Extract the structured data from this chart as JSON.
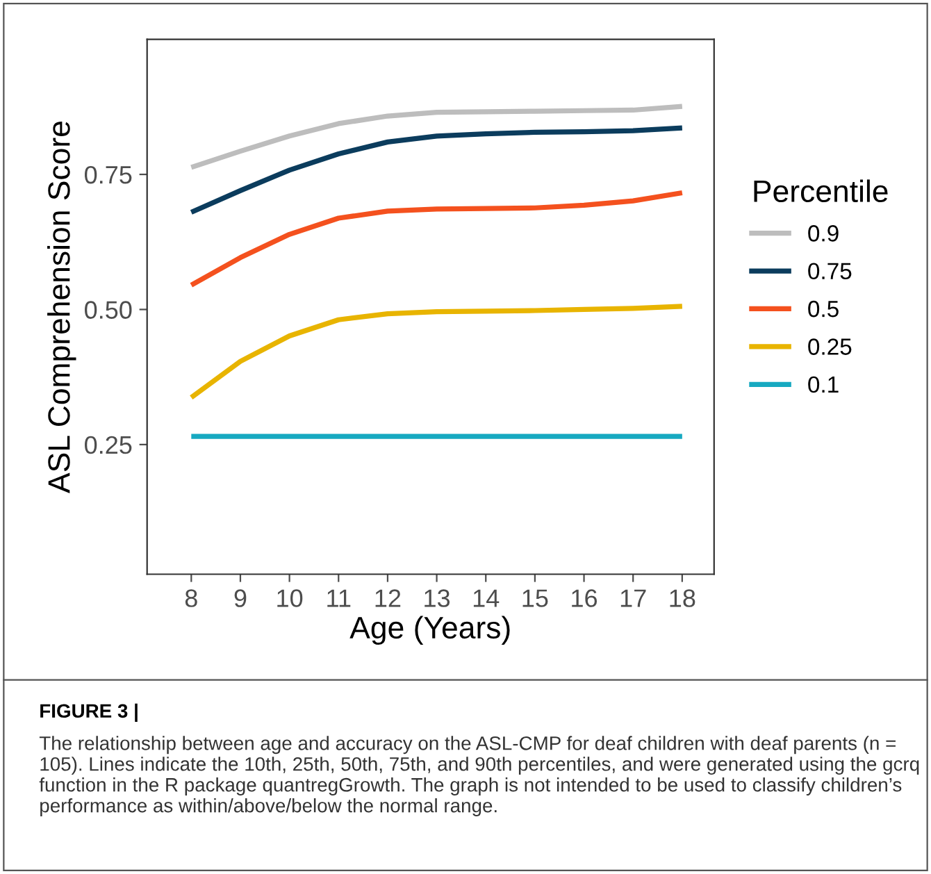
{
  "chart_data": {
    "type": "line",
    "xlabel": "Age (Years)",
    "ylabel": "ASL Comprehension Score",
    "legend_title": "Percentile",
    "x": [
      8,
      9,
      10,
      11,
      12,
      13,
      14,
      15,
      16,
      17,
      18
    ],
    "series": [
      {
        "name": "0.9",
        "color": "#bdbdbd",
        "values": [
          0.763,
          0.793,
          0.821,
          0.844,
          0.858,
          0.865,
          0.866,
          0.867,
          0.868,
          0.869,
          0.876
        ]
      },
      {
        "name": "0.75",
        "color": "#0b3c5d",
        "values": [
          0.68,
          0.72,
          0.758,
          0.788,
          0.81,
          0.821,
          0.825,
          0.828,
          0.829,
          0.831,
          0.836
        ]
      },
      {
        "name": "0.5",
        "color": "#f4511e",
        "values": [
          0.545,
          0.596,
          0.639,
          0.669,
          0.682,
          0.686,
          0.687,
          0.688,
          0.693,
          0.701,
          0.716
        ]
      },
      {
        "name": "0.25",
        "color": "#e8b400",
        "values": [
          0.337,
          0.404,
          0.451,
          0.481,
          0.492,
          0.496,
          0.497,
          0.498,
          0.5,
          0.502,
          0.506
        ]
      },
      {
        "name": "0.1",
        "color": "#17a9c1",
        "values": [
          0.265,
          0.265,
          0.265,
          0.265,
          0.265,
          0.265,
          0.265,
          0.265,
          0.265,
          0.265,
          0.265
        ]
      }
    ],
    "xlim": [
      7.1,
      18.65
    ],
    "ylim": [
      0.01,
      1.0
    ],
    "xticks": [
      8,
      9,
      10,
      11,
      12,
      13,
      14,
      15,
      16,
      17,
      18
    ],
    "yticks": [
      {
        "value": 0.25,
        "label": "0.25"
      },
      {
        "value": 0.5,
        "label": "0.50"
      },
      {
        "value": 0.75,
        "label": "0.75"
      }
    ],
    "grid": false,
    "legend": "right",
    "marker": "none",
    "line_style": "solid",
    "annotations": [
      "FIGURE 3 |",
      "The relationship between age and accuracy on the ASL-CMP for deaf children with deaf parents (n = 105). Lines indicate the 10th, 25th, 50th, 75th, and 90th percentiles, and were generated using the gcrq function in the R package quantregGrowth. The graph is not intended to be used to classify children’s performance as within/above/below the normal range."
    ]
  }
}
